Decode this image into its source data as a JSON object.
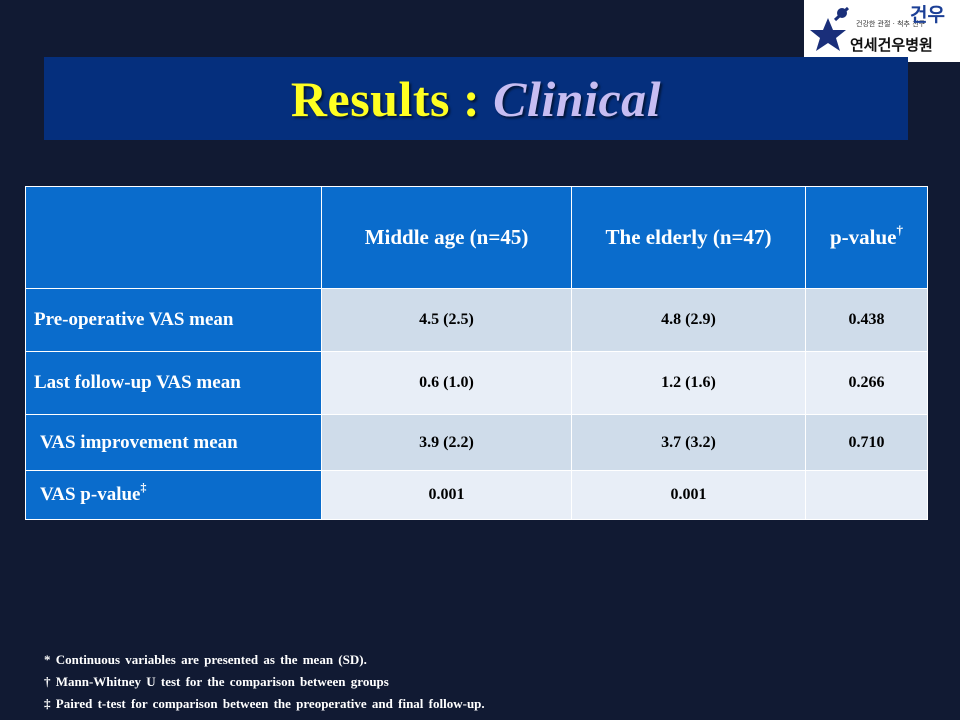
{
  "title": {
    "main": "Results :",
    "sub": "Clinical"
  },
  "logo": {
    "tagline": "건강한 관절 · 척추 친구",
    "brand_big": "건우",
    "name": "연세건우병원"
  },
  "table": {
    "corner": "",
    "headers": [
      "Middle age (n=45)",
      "The elderly (n=47)",
      "p-value"
    ],
    "header_marks": [
      "",
      "",
      "†"
    ],
    "rows": [
      {
        "label": "Pre-operative VAS mean",
        "mark": "",
        "cells": [
          "4.5 (2.5)",
          "4.8 (2.9)",
          "0.438"
        ]
      },
      {
        "label": "Last follow-up VAS mean",
        "mark": "",
        "cells": [
          "0.6 (1.0)",
          "1.2 (1.6)",
          "0.266"
        ]
      },
      {
        "label": "VAS improvement mean",
        "mark": "",
        "cells": [
          "3.9 (2.2)",
          "3.7 (3.2)",
          "0.710"
        ]
      },
      {
        "label": "VAS p-value",
        "mark": "‡",
        "cells": [
          "0.001",
          "0.001",
          ""
        ]
      }
    ]
  },
  "footnotes": [
    "* Continuous variables are presented as the mean (SD).",
    "† Mann-Whitney U test for the comparison between groups",
    "‡ Paired t-test for comparison between the preoperative and final follow-up."
  ],
  "colors": {
    "background": "#111a33",
    "title_band": "#052f7d",
    "title_main": "#ffff22",
    "title_sub": "#c7bdf2",
    "header_fill": "#0a6ccc",
    "row_light": "#e8eef7",
    "row_mid": "#cfdcea"
  }
}
